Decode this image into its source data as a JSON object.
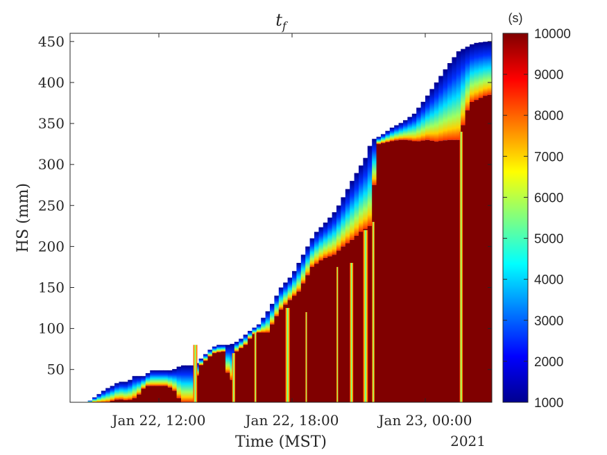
{
  "chart_data": {
    "type": "heatmap",
    "title": "t",
    "title_subscript": "f",
    "xlabel": "Time (MST)",
    "ylabel": "HS (mm)",
    "year_label": "2021",
    "xlim_hours": [
      8.0,
      27.0
    ],
    "ylim": [
      10,
      460
    ],
    "x_ticks": [
      {
        "hour": 12,
        "label": "Jan 22, 12:00"
      },
      {
        "hour": 18,
        "label": "Jan 22, 18:00"
      },
      {
        "hour": 24,
        "label": "Jan 23, 00:00"
      }
    ],
    "y_ticks": [
      50,
      100,
      150,
      200,
      250,
      300,
      350,
      400,
      450
    ],
    "colorbar": {
      "unit_label": "(s)",
      "range": [
        1000,
        10000
      ],
      "ticks": [
        1000,
        2000,
        3000,
        4000,
        5000,
        6000,
        7000,
        8000,
        9000,
        10000
      ],
      "colormap": "jet"
    },
    "snow_surface": [
      [
        8.8,
        10
      ],
      [
        9.0,
        14
      ],
      [
        9.3,
        20
      ],
      [
        9.6,
        26
      ],
      [
        9.9,
        30
      ],
      [
        10.2,
        35
      ],
      [
        10.6,
        35
      ],
      [
        10.9,
        42
      ],
      [
        11.3,
        42
      ],
      [
        11.7,
        49
      ],
      [
        12.6,
        49
      ],
      [
        13.0,
        55
      ],
      [
        13.6,
        55
      ],
      [
        14.0,
        66
      ],
      [
        14.3,
        74
      ],
      [
        14.6,
        80
      ],
      [
        15.2,
        80
      ],
      [
        15.6,
        85
      ],
      [
        16.0,
        95
      ],
      [
        16.5,
        105
      ],
      [
        17.0,
        125
      ],
      [
        17.5,
        150
      ],
      [
        18.0,
        165
      ],
      [
        18.5,
        190
      ],
      [
        19.0,
        215
      ],
      [
        19.6,
        232
      ],
      [
        20.0,
        245
      ],
      [
        20.4,
        265
      ],
      [
        20.8,
        285
      ],
      [
        21.3,
        308
      ],
      [
        21.6,
        330
      ],
      [
        22.0,
        335
      ],
      [
        22.5,
        345
      ],
      [
        23.0,
        352
      ],
      [
        23.5,
        362
      ],
      [
        24.0,
        380
      ],
      [
        24.5,
        400
      ],
      [
        25.0,
        420
      ],
      [
        25.5,
        438
      ],
      [
        26.2,
        448
      ],
      [
        26.8,
        450
      ]
    ],
    "core_depth": [
      [
        9.0,
        5
      ],
      [
        10.2,
        14
      ],
      [
        10.6,
        12
      ],
      [
        11.0,
        16
      ],
      [
        11.4,
        30
      ],
      [
        12.4,
        30
      ],
      [
        12.8,
        22
      ],
      [
        13.0,
        8
      ],
      [
        13.5,
        8
      ],
      [
        13.8,
        60
      ],
      [
        14.3,
        70
      ],
      [
        15.0,
        72
      ],
      [
        15.2,
        20
      ],
      [
        15.5,
        72
      ],
      [
        15.9,
        80
      ],
      [
        16.3,
        95
      ],
      [
        16.9,
        95
      ],
      [
        17.4,
        120
      ],
      [
        17.8,
        132
      ],
      [
        18.3,
        145
      ],
      [
        18.9,
        175
      ],
      [
        19.4,
        185
      ],
      [
        19.9,
        190
      ],
      [
        20.3,
        200
      ],
      [
        20.7,
        208
      ],
      [
        21.1,
        218
      ],
      [
        21.5,
        225
      ],
      [
        21.9,
        325
      ],
      [
        22.4,
        328
      ],
      [
        22.8,
        330
      ],
      [
        23.2,
        330
      ],
      [
        23.6,
        328
      ],
      [
        24.1,
        330
      ],
      [
        24.5,
        328
      ],
      [
        25.0,
        330
      ],
      [
        25.5,
        330
      ],
      [
        26.0,
        375
      ],
      [
        26.8,
        385
      ]
    ],
    "gaps": [
      {
        "hour": 13.55,
        "width": 0.18,
        "top": 80
      },
      {
        "hour": 15.3,
        "width": 0.14,
        "top": 70
      },
      {
        "hour": 16.3,
        "width": 0.1,
        "top": 95
      },
      {
        "hour": 17.7,
        "width": 0.2,
        "top": 125
      },
      {
        "hour": 18.6,
        "width": 0.08,
        "top": 120
      },
      {
        "hour": 20.0,
        "width": 0.08,
        "top": 175
      },
      {
        "hour": 20.6,
        "width": 0.16,
        "top": 180
      },
      {
        "hour": 21.2,
        "width": 0.22,
        "top": 220
      },
      {
        "hour": 21.6,
        "width": 0.12,
        "top": 230
      },
      {
        "hour": 25.55,
        "width": 0.14,
        "top": 340
      }
    ]
  }
}
